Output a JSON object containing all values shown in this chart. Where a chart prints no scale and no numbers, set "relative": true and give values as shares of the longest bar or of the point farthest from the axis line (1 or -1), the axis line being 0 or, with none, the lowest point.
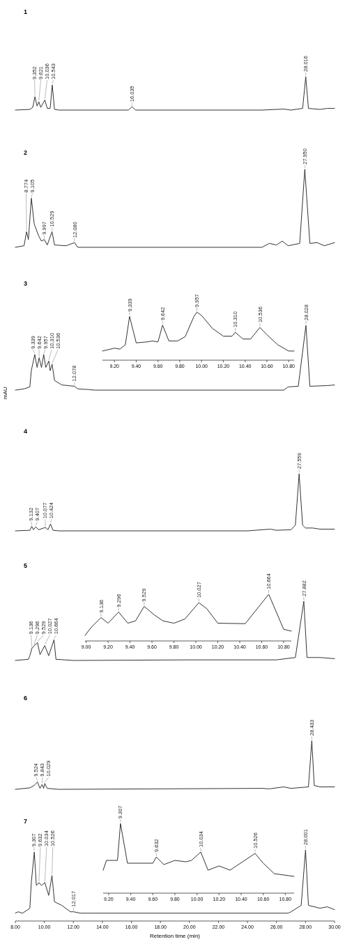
{
  "chart_data": [
    {
      "type": "line",
      "title": "1",
      "relative": true,
      "xlim": [
        8,
        30
      ],
      "tick_labels": false,
      "color": "#333333",
      "x": [
        8,
        9,
        9.2,
        9.352,
        9.5,
        9.621,
        9.75,
        10.036,
        10.2,
        10.4,
        10.543,
        10.7,
        11,
        15.8,
        16.035,
        16.3,
        25,
        26.5,
        27,
        27.8,
        28.016,
        28.2,
        29,
        29.5,
        30
      ],
      "values": [
        0,
        0.02,
        0.08,
        0.4,
        0.12,
        0.25,
        0.08,
        0.3,
        0.05,
        0.05,
        0.75,
        0.02,
        0,
        0,
        0.1,
        0,
        0,
        0.03,
        0,
        0.05,
        1,
        0.05,
        0.02,
        0.05,
        0.05
      ],
      "annotations": [
        {
          "text": "9.352",
          "x": 9.352,
          "y": 0.4
        },
        {
          "text": "9.621",
          "x": 9.621,
          "y": 0.25
        },
        {
          "text": "10.036",
          "x": 10.036,
          "y": 0.3
        },
        {
          "text": "10.543",
          "x": 10.543,
          "y": 0.75
        },
        {
          "text": "16.035",
          "x": 16.035,
          "y": 0.1
        },
        {
          "text": "28.016",
          "x": 28.016,
          "y": 1
        }
      ]
    },
    {
      "type": "line",
      "title": "2",
      "relative": true,
      "xlim": [
        8,
        30
      ],
      "tick_labels": false,
      "color": "#333333",
      "x": [
        8,
        8.6,
        8.774,
        8.9,
        9.105,
        9.3,
        9.6,
        9.8,
        9.997,
        10.2,
        10.529,
        10.7,
        11.5,
        12.08,
        12.3,
        25,
        25.5,
        26,
        26.4,
        26.8,
        27.6,
        27.95,
        28.3,
        28.8,
        29.3,
        30
      ],
      "values": [
        0,
        0.02,
        0.2,
        0.1,
        0.63,
        0.3,
        0.15,
        0.08,
        0.1,
        0.03,
        0.2,
        0.03,
        0.02,
        0.06,
        0,
        0,
        0.05,
        0.03,
        0.08,
        0.02,
        0.05,
        1,
        0.05,
        0.06,
        0.02,
        0.06
      ],
      "annotations": [
        {
          "text": "8.774",
          "x": 8.774,
          "y": 0.2
        },
        {
          "text": "9.105",
          "x": 9.105,
          "y": 0.63
        },
        {
          "text": "9.997",
          "x": 9.997,
          "y": 0.1
        },
        {
          "text": "10.529",
          "x": 10.529,
          "y": 0.2
        },
        {
          "text": "12.080",
          "x": 12.08,
          "y": 0.06
        },
        {
          "text": "27.950",
          "x": 27.95,
          "y": 1
        }
      ]
    },
    {
      "type": "line",
      "title": "3",
      "ylabel": "mAU",
      "relative": true,
      "xlim": [
        8,
        30
      ],
      "tick_labels": false,
      "color": "#333333",
      "x": [
        8,
        8.6,
        9,
        9.1,
        9.339,
        9.5,
        9.642,
        9.8,
        9.957,
        10.1,
        10.31,
        10.4,
        10.536,
        10.7,
        11.2,
        12.078,
        12.3,
        13,
        13.5,
        26.5,
        26.8,
        27.5,
        28.028,
        28.3,
        29.5,
        30
      ],
      "values": [
        0,
        0.02,
        0.05,
        0.3,
        0.55,
        0.35,
        0.5,
        0.35,
        0.55,
        0.35,
        0.45,
        0.3,
        0.4,
        0.15,
        0.08,
        0.06,
        0.02,
        0.01,
        0,
        0,
        0.05,
        0.06,
        1,
        0.06,
        0.07,
        0.08
      ],
      "annotations": [
        {
          "text": "9.339",
          "x": 9.339,
          "y": 0.55
        },
        {
          "text": "9.642",
          "x": 9.642,
          "y": 0.5
        },
        {
          "text": "9.957",
          "x": 9.957,
          "y": 0.55
        },
        {
          "text": "10.310",
          "x": 10.31,
          "y": 0.45
        },
        {
          "text": "10.536",
          "x": 10.536,
          "y": 0.4
        },
        {
          "text": "12.078",
          "x": 12.078,
          "y": 0.06
        },
        {
          "text": "28.028",
          "x": 28.028,
          "y": 1
        }
      ]
    },
    {
      "type": "line",
      "relative": true,
      "xlim": [
        9.09,
        10.85
      ],
      "color": "#333333",
      "xticks": [
        {
          "value": 9.2,
          "label": "9.20"
        },
        {
          "value": 9.4,
          "label": "9.40"
        },
        {
          "value": 9.6,
          "label": "9.60"
        },
        {
          "value": 9.8,
          "label": "9.80"
        },
        {
          "value": 10,
          "label": "10.00"
        },
        {
          "value": 10.2,
          "label": "10.20"
        },
        {
          "value": 10.4,
          "label": "10.40"
        },
        {
          "value": 10.6,
          "label": "10.60"
        },
        {
          "value": 10.8,
          "label": "10.80"
        }
      ],
      "x": [
        9.09,
        9.2,
        9.25,
        9.3,
        9.339,
        9.4,
        9.5,
        9.55,
        9.6,
        9.642,
        9.7,
        9.78,
        9.85,
        9.93,
        9.957,
        10,
        10.1,
        10.2,
        10.28,
        10.31,
        10.38,
        10.45,
        10.536,
        10.6,
        10.7,
        10.8,
        10.85
      ],
      "values": [
        0.19,
        0.25,
        0.23,
        0.32,
        0.91,
        0.36,
        0.38,
        0.4,
        0.38,
        0.73,
        0.4,
        0.4,
        0.49,
        0.91,
        1,
        0.93,
        0.66,
        0.5,
        0.5,
        0.58,
        0.44,
        0.44,
        0.68,
        0.53,
        0.32,
        0.19,
        0.19
      ],
      "annotations": [
        {
          "text": "9.339",
          "x": 9.339,
          "y": 0.91
        },
        {
          "text": "9.642",
          "x": 9.642,
          "y": 0.73
        },
        {
          "text": "9.957",
          "x": 9.957,
          "y": 1
        },
        {
          "text": "10.310",
          "x": 10.31,
          "y": 0.58
        },
        {
          "text": "10.536",
          "x": 10.536,
          "y": 0.68
        }
      ]
    },
    {
      "type": "line",
      "title": "4",
      "relative": true,
      "xlim": [
        8,
        30
      ],
      "tick_labels": false,
      "color": "#333333",
      "x": [
        8,
        9,
        9.132,
        9.25,
        9.407,
        9.6,
        10.077,
        10.25,
        10.424,
        10.6,
        11,
        24,
        25,
        25.6,
        26,
        27,
        27.3,
        27.559,
        27.8,
        28,
        28.5,
        29,
        30
      ],
      "values": [
        0,
        0.01,
        0.08,
        0.02,
        0.07,
        0.02,
        0.06,
        0.02,
        0.12,
        0.01,
        0,
        0,
        0.02,
        0.03,
        0.01,
        0.02,
        0.1,
        1,
        0.1,
        0.05,
        0.05,
        0.03,
        0.03
      ],
      "annotations": [
        {
          "text": "9.132",
          "x": 9.132,
          "y": 0.08
        },
        {
          "text": "9.407",
          "x": 9.407,
          "y": 0.07
        },
        {
          "text": "10.077",
          "x": 10.077,
          "y": 0.06
        },
        {
          "text": "10.424",
          "x": 10.424,
          "y": 0.12
        },
        {
          "text": "27.559",
          "x": 27.559,
          "y": 1
        }
      ]
    },
    {
      "type": "line",
      "title": "5",
      "relative": true,
      "xlim": [
        8,
        30
      ],
      "tick_labels": false,
      "color": "#333333",
      "x": [
        8,
        8.9,
        9,
        9.136,
        9.296,
        9.529,
        9.7,
        10.027,
        10.3,
        10.664,
        10.8,
        12,
        20,
        26,
        27.3,
        27.882,
        28.1,
        29,
        30
      ],
      "values": [
        0,
        0.02,
        0.08,
        0.2,
        0.25,
        0.3,
        0.1,
        0.25,
        0.08,
        0.35,
        0.02,
        0,
        0.01,
        0.01,
        0.05,
        1,
        0.05,
        0.05,
        0.03
      ],
      "annotations": [
        {
          "text": "9.136",
          "x": 9.136,
          "y": 0.2
        },
        {
          "text": "9.296",
          "x": 9.296,
          "y": 0.25
        },
        {
          "text": "9.529",
          "x": 9.529,
          "y": 0.3
        },
        {
          "text": "10.027",
          "x": 10.027,
          "y": 0.25
        },
        {
          "text": "10.664",
          "x": 10.664,
          "y": 0.35
        },
        {
          "text": "27.882",
          "x": 27.882,
          "y": 1
        }
      ]
    },
    {
      "type": "line",
      "relative": true,
      "xlim": [
        8.99,
        10.87
      ],
      "color": "#333333",
      "xticks": [
        {
          "value": 9,
          "label": "9.00"
        },
        {
          "value": 9.2,
          "label": "9.20"
        },
        {
          "value": 9.4,
          "label": "9.40"
        },
        {
          "value": 9.6,
          "label": "9.60"
        },
        {
          "value": 9.8,
          "label": "9.80"
        },
        {
          "value": 10,
          "label": "10.00"
        },
        {
          "value": 10.2,
          "label": "10.20"
        },
        {
          "value": 10.4,
          "label": "10.40"
        },
        {
          "value": 10.6,
          "label": "10.60"
        },
        {
          "value": 10.8,
          "label": "10.80"
        }
      ],
      "x": [
        8.99,
        9.05,
        9.136,
        9.2,
        9.296,
        9.38,
        9.45,
        9.529,
        9.62,
        9.7,
        9.8,
        9.9,
        10.027,
        10.1,
        10.2,
        10.45,
        10.664,
        10.8,
        10.87
      ],
      "values": [
        0.12,
        0.3,
        0.5,
        0.38,
        0.62,
        0.38,
        0.43,
        0.74,
        0.56,
        0.43,
        0.38,
        0.47,
        0.82,
        0.69,
        0.38,
        0.37,
        1,
        0.25,
        0.21
      ],
      "annotations": [
        {
          "text": "9.136",
          "x": 9.136,
          "y": 0.5
        },
        {
          "text": "9.296",
          "x": 9.296,
          "y": 0.62
        },
        {
          "text": "9.529",
          "x": 9.529,
          "y": 0.74
        },
        {
          "text": "10.027",
          "x": 10.027,
          "y": 0.82
        },
        {
          "text": "10.664",
          "x": 10.664,
          "y": 1
        }
      ]
    },
    {
      "type": "line",
      "title": "6",
      "relative": true,
      "xlim": [
        8,
        30
      ],
      "tick_labels": false,
      "color": "#333333",
      "x": [
        8,
        9,
        9.3,
        9.524,
        9.7,
        9.843,
        9.95,
        10.029,
        10.2,
        11,
        25,
        25.5,
        26.5,
        27,
        28.2,
        28.433,
        28.6,
        29,
        30
      ],
      "values": [
        0,
        0.03,
        0.08,
        0.15,
        0.02,
        0.1,
        0.02,
        0.12,
        0.02,
        0,
        0.02,
        0.01,
        0.05,
        0.02,
        0.05,
        1,
        0.08,
        0.05,
        0.05
      ],
      "annotations": [
        {
          "text": "9.524",
          "x": 9.524,
          "y": 0.15
        },
        {
          "text": "9.843",
          "x": 9.843,
          "y": 0.1
        },
        {
          "text": "10.029",
          "x": 10.029,
          "y": 0.12
        },
        {
          "text": "28.433",
          "x": 28.433,
          "y": 1
        }
      ]
    },
    {
      "type": "line",
      "title": "7",
      "xlabel": "Retention time (min)",
      "relative": true,
      "xlim": [
        8,
        30
      ],
      "tick_labels": "x",
      "color": "#333333",
      "xticks": [
        {
          "value": 8,
          "label": "8.00"
        },
        {
          "value": 10,
          "label": "10.00"
        },
        {
          "value": 12,
          "label": "12.00"
        },
        {
          "value": 14,
          "label": "14.00"
        },
        {
          "value": 16,
          "label": "16.00"
        },
        {
          "value": 18,
          "label": "18.00"
        },
        {
          "value": 20,
          "label": "20.00"
        },
        {
          "value": 22,
          "label": "22.00"
        },
        {
          "value": 24,
          "label": "24.00"
        },
        {
          "value": 26,
          "label": "26.00"
        },
        {
          "value": 28,
          "label": "28.00"
        },
        {
          "value": 30,
          "label": "30.00"
        }
      ],
      "x": [
        8,
        8.2,
        8.5,
        9,
        9.1,
        9.307,
        9.45,
        9.632,
        9.8,
        10.034,
        10.3,
        10.526,
        10.7,
        11.2,
        11.8,
        12.017,
        12.5,
        13,
        26.8,
        27,
        27.7,
        28.001,
        28.2,
        29,
        29.5,
        30
      ],
      "values": [
        0.11,
        0.13,
        0.11,
        0.18,
        0.54,
        0.97,
        0.5,
        0.54,
        0.5,
        0.54,
        0.36,
        0.64,
        0.27,
        0.22,
        0.13,
        0.13,
        0.11,
        0.11,
        0.11,
        0.13,
        0.22,
        1,
        0.22,
        0.18,
        0.2,
        0.16
      ],
      "annotations": [
        {
          "text": "9.307",
          "x": 9.307,
          "y": 0.97
        },
        {
          "text": "9.632",
          "x": 9.632,
          "y": 0.54
        },
        {
          "text": "10.034",
          "x": 10.034,
          "y": 0.54
        },
        {
          "text": "10.526",
          "x": 10.526,
          "y": 0.64
        },
        {
          "text": "12.017",
          "x": 12.017,
          "y": 0.13
        },
        {
          "text": "28.001",
          "x": 28.001,
          "y": 1
        }
      ]
    },
    {
      "type": "line",
      "relative": true,
      "xlim": [
        9.15,
        10.88
      ],
      "color": "#333333",
      "xticks": [
        {
          "value": 9.2,
          "label": "9.20"
        },
        {
          "value": 9.4,
          "label": "9.40"
        },
        {
          "value": 9.6,
          "label": "9.60"
        },
        {
          "value": 9.8,
          "label": "9.80"
        },
        {
          "value": 10,
          "label": "10.00"
        },
        {
          "value": 10.2,
          "label": "10.20"
        },
        {
          "value": 10.4,
          "label": "10.40"
        },
        {
          "value": 10.6,
          "label": "10.60"
        },
        {
          "value": 10.8,
          "label": "10.80"
        }
      ],
      "x": [
        9.15,
        9.18,
        9.28,
        9.307,
        9.37,
        9.6,
        9.632,
        9.7,
        9.8,
        9.9,
        9.95,
        10.034,
        10.1,
        10.2,
        10.3,
        10.526,
        10.6,
        10.7,
        10.88
      ],
      "values": [
        0.33,
        0.47,
        0.47,
        1,
        0.43,
        0.43,
        0.52,
        0.41,
        0.47,
        0.45,
        0.47,
        0.59,
        0.33,
        0.39,
        0.33,
        0.57,
        0.43,
        0.28,
        0.24
      ],
      "annotations": [
        {
          "text": "9.307",
          "x": 9.307,
          "y": 1
        },
        {
          "text": "9.632",
          "x": 9.632,
          "y": 0.52
        },
        {
          "text": "10.034",
          "x": 10.034,
          "y": 0.59
        },
        {
          "text": "10.526",
          "x": 10.526,
          "y": 0.57
        }
      ]
    }
  ]
}
